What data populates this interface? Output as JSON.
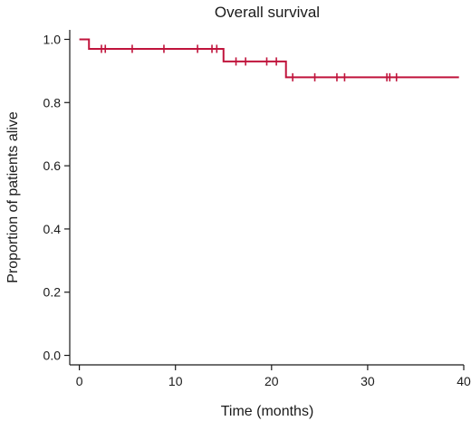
{
  "chart_data": {
    "type": "line",
    "title": "Overall survival",
    "xlabel": "Time (months)",
    "ylabel": "Proportion of patients alive",
    "xlim": [
      -1,
      40
    ],
    "ylim": [
      -0.03,
      1.03
    ],
    "xticks": [
      0,
      10,
      20,
      30,
      40
    ],
    "yticks": [
      0.0,
      0.2,
      0.4,
      0.6,
      0.8,
      1.0
    ],
    "ytick_labels": [
      "0.0",
      "0.2",
      "0.4",
      "0.6",
      "0.8",
      "1.0"
    ],
    "grid": false,
    "series": [
      {
        "color": "#c0143c",
        "step": true,
        "x": [
          0,
          1,
          15,
          21.5,
          39.5
        ],
        "y": [
          1.0,
          0.97,
          0.93,
          0.88,
          0.88
        ],
        "censored": [
          {
            "x": 2.3,
            "y": 0.97
          },
          {
            "x": 2.7,
            "y": 0.97
          },
          {
            "x": 5.5,
            "y": 0.97
          },
          {
            "x": 8.8,
            "y": 0.97
          },
          {
            "x": 12.3,
            "y": 0.97
          },
          {
            "x": 13.8,
            "y": 0.97
          },
          {
            "x": 14.3,
            "y": 0.97
          },
          {
            "x": 16.3,
            "y": 0.93
          },
          {
            "x": 17.3,
            "y": 0.93
          },
          {
            "x": 19.5,
            "y": 0.93
          },
          {
            "x": 20.5,
            "y": 0.93
          },
          {
            "x": 22.2,
            "y": 0.88
          },
          {
            "x": 24.5,
            "y": 0.88
          },
          {
            "x": 26.8,
            "y": 0.88
          },
          {
            "x": 27.6,
            "y": 0.88
          },
          {
            "x": 32.0,
            "y": 0.88
          },
          {
            "x": 32.3,
            "y": 0.88
          },
          {
            "x": 33.0,
            "y": 0.88
          }
        ]
      }
    ]
  }
}
